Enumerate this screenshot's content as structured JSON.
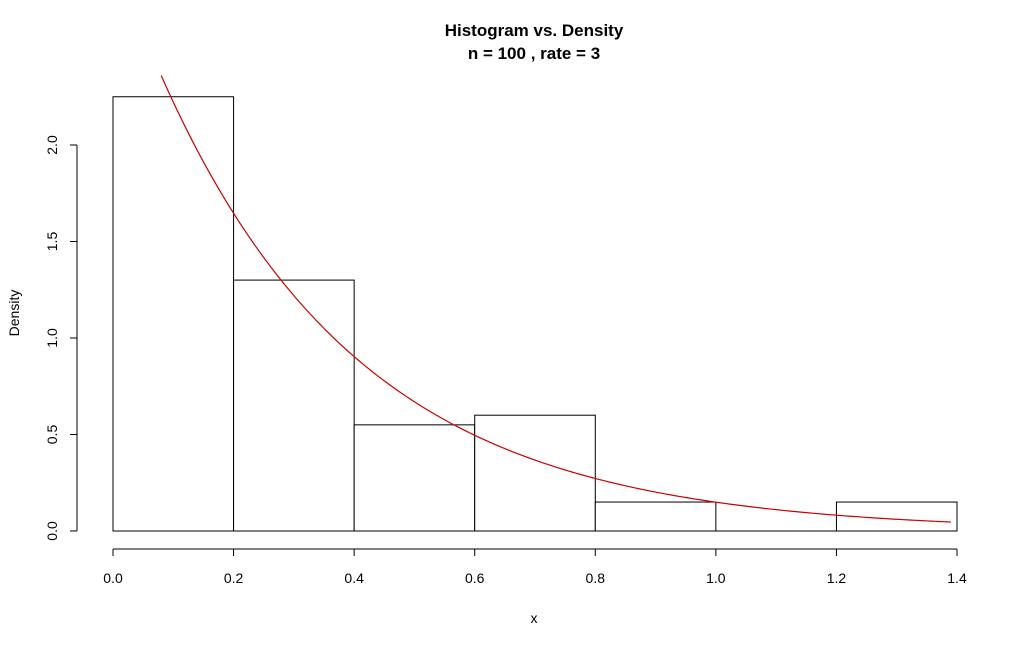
{
  "chart_data": {
    "type": "bar",
    "title": "Histogram vs. Density",
    "subtitle": "n = 100 , rate = 3",
    "xlabel": "x",
    "ylabel": "Density",
    "xlim": [
      0.0,
      1.4
    ],
    "ylim": [
      0.0,
      2.25
    ],
    "x_ticks": [
      "0.0",
      "0.2",
      "0.4",
      "0.6",
      "0.8",
      "1.0",
      "1.2",
      "1.4"
    ],
    "y_ticks": [
      "0.0",
      "0.5",
      "1.0",
      "1.5",
      "2.0"
    ],
    "bins": [
      {
        "from": 0.0,
        "to": 0.2,
        "density": 2.25
      },
      {
        "from": 0.2,
        "to": 0.4,
        "density": 1.3
      },
      {
        "from": 0.4,
        "to": 0.6,
        "density": 0.55
      },
      {
        "from": 0.6,
        "to": 0.8,
        "density": 0.6
      },
      {
        "from": 0.8,
        "to": 1.0,
        "density": 0.15
      },
      {
        "from": 1.0,
        "to": 1.2,
        "density": 0.0
      },
      {
        "from": 1.2,
        "to": 1.4,
        "density": 0.15
      }
    ],
    "density_curve": {
      "function": "3 * exp(-3 * x)",
      "rate": 3,
      "x_range": [
        0.08,
        1.39
      ],
      "color": "#cc0000"
    },
    "bar_fill": "#ffffff",
    "bar_stroke": "#000000",
    "grid": false
  }
}
